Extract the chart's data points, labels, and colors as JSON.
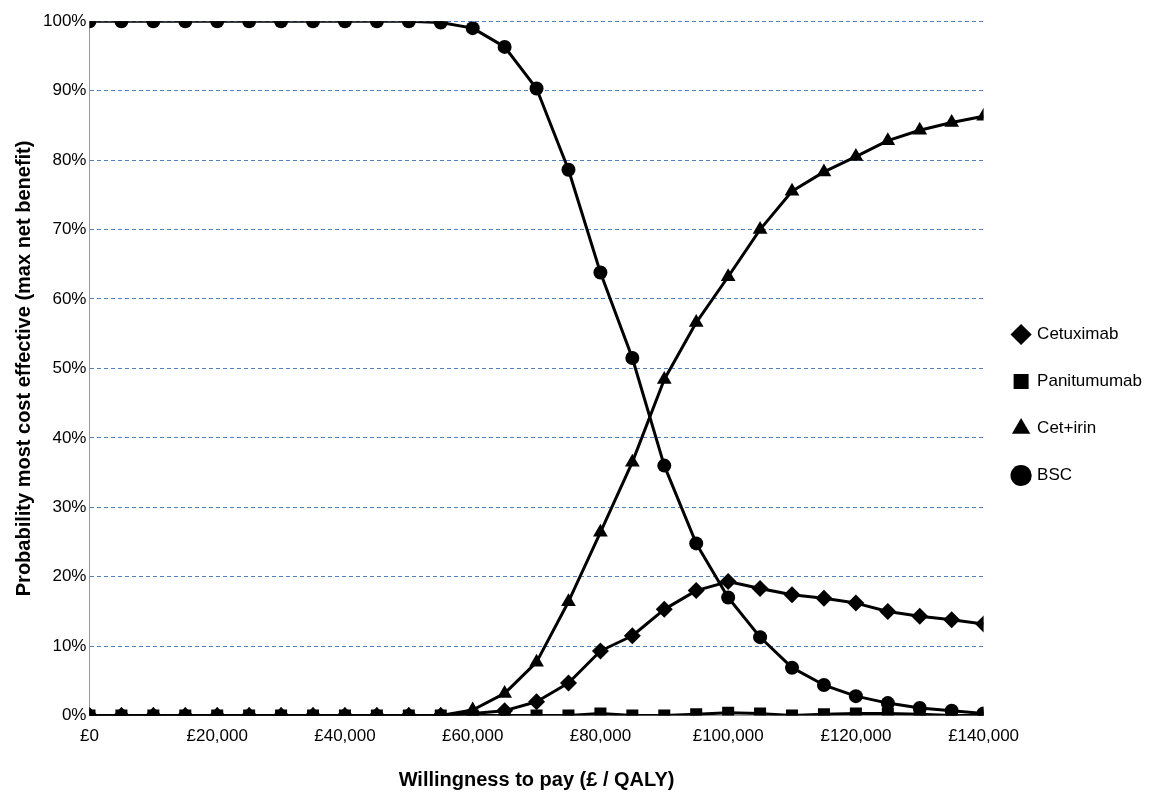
{
  "chart_data": {
    "type": "line",
    "xlabel": "Willingness to pay (£ / QALY)",
    "ylabel": "Probability most cost effective (max net benefit)",
    "x": [
      0,
      5000,
      10000,
      15000,
      20000,
      25000,
      30000,
      35000,
      40000,
      45000,
      50000,
      55000,
      60000,
      65000,
      70000,
      75000,
      80000,
      85000,
      90000,
      95000,
      100000,
      105000,
      110000,
      115000,
      120000,
      125000,
      130000,
      135000,
      140000
    ],
    "series": [
      {
        "name": "Cetuximab",
        "color": "#000000",
        "marker": "diamond",
        "values": [
          0,
          0,
          0,
          0,
          0,
          0,
          0,
          0,
          0,
          0,
          0,
          0,
          0.3,
          0.7,
          2,
          4.7,
          9.3,
          11.5,
          15.3,
          18,
          19.3,
          18.3,
          17.4,
          16.9,
          16.2,
          15,
          14.3,
          13.8,
          13.2
        ]
      },
      {
        "name": "Panitumumab",
        "color": "#000000",
        "marker": "square",
        "values": [
          0,
          0,
          0,
          0,
          0,
          0,
          0,
          0,
          0,
          0,
          0,
          0,
          0,
          0,
          0,
          0,
          0.3,
          0,
          0,
          0.2,
          0.4,
          0.3,
          0,
          0.2,
          0.3,
          0.3,
          0.2,
          0,
          0
        ]
      },
      {
        "name": "Cet+irin",
        "color": "#000000",
        "marker": "triangle",
        "values": [
          0,
          0,
          0,
          0,
          0,
          0,
          0,
          0,
          0,
          0,
          0,
          0,
          0.8,
          3.2,
          7.7,
          16.4,
          26.4,
          36.5,
          48.4,
          56.6,
          63.2,
          70,
          75.5,
          78.3,
          80.5,
          82.8,
          84.3,
          85.4,
          86.3
        ]
      },
      {
        "name": "BSC",
        "color": "#000000",
        "marker": "circle",
        "values": [
          100,
          100,
          100,
          100,
          100,
          100,
          100,
          100,
          100,
          100,
          100,
          99.8,
          99,
          96.3,
          90.3,
          78.6,
          63.8,
          51.5,
          36,
          24.8,
          17,
          11.3,
          6.9,
          4.4,
          2.8,
          1.8,
          1.1,
          0.7,
          0.3
        ]
      }
    ],
    "xlim": [
      0,
      140000
    ],
    "xticks": [
      {
        "value": 0,
        "label": "£0"
      },
      {
        "value": 20000,
        "label": "£20,000"
      },
      {
        "value": 40000,
        "label": "£40,000"
      },
      {
        "value": 60000,
        "label": "£60,000"
      },
      {
        "value": 80000,
        "label": "£80,000"
      },
      {
        "value": 100000,
        "label": "£100,000"
      },
      {
        "value": 120000,
        "label": "£120,000"
      },
      {
        "value": 140000,
        "label": "£140,000"
      }
    ],
    "ylim": [
      0,
      100
    ],
    "yticks": [
      {
        "value": 0,
        "label": "0%"
      },
      {
        "value": 10,
        "label": "10%"
      },
      {
        "value": 20,
        "label": "20%"
      },
      {
        "value": 30,
        "label": "30%"
      },
      {
        "value": 40,
        "label": "40%"
      },
      {
        "value": 50,
        "label": "50%"
      },
      {
        "value": 60,
        "label": "60%"
      },
      {
        "value": 70,
        "label": "70%"
      },
      {
        "value": 80,
        "label": "80%"
      },
      {
        "value": 90,
        "label": "90%"
      },
      {
        "value": 100,
        "label": "100%"
      }
    ],
    "grid": "y",
    "legend": "right",
    "line_style": "solid"
  }
}
